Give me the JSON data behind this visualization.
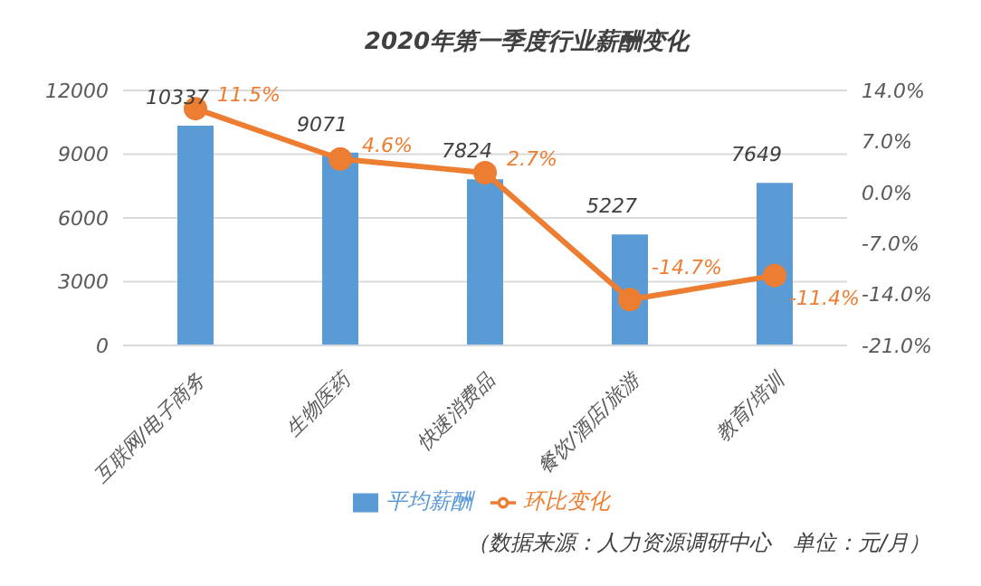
{
  "chart_data": {
    "type": "bar",
    "title": "2020年第一季度行业薪酬变化",
    "categories": [
      "互联网/电子商务",
      "生物医药",
      "快速消费品",
      "餐饮/酒店/旅游",
      "教育/培训"
    ],
    "series": [
      {
        "name": "平均薪酬",
        "color": "#5b9bd5",
        "values": [
          10337,
          9071,
          7824,
          5227,
          7649
        ],
        "value_labels": [
          "10337",
          "9071",
          "7824",
          "5227",
          "7649"
        ]
      },
      {
        "name": "环比变化",
        "type": "line",
        "axis": "y2",
        "color": "#ed7d31",
        "marker": "circle",
        "values": [
          11.5,
          4.6,
          2.7,
          -14.7,
          -11.4
        ],
        "value_labels": [
          "11.5%",
          "4.6%",
          "2.7%",
          "-14.7%",
          "-11.4%"
        ]
      }
    ],
    "ylim": [
      0,
      12000
    ],
    "yticks": [
      0,
      3000,
      6000,
      9000,
      12000
    ],
    "y2lim": [
      -21,
      14
    ],
    "y2ticks": [
      {
        "value": -21,
        "label": "-21.0%"
      },
      {
        "value": -14,
        "label": "-14.0%"
      },
      {
        "value": -7,
        "label": "-7.0%"
      },
      {
        "value": 0,
        "label": "0.0%"
      },
      {
        "value": 7,
        "label": "7.0%"
      },
      {
        "value": 14,
        "label": "14.0%"
      }
    ],
    "grid": "y",
    "legend": "bottom",
    "annotations": [
      "（数据来源：人力资源调研中心　单位：元/月）"
    ]
  }
}
